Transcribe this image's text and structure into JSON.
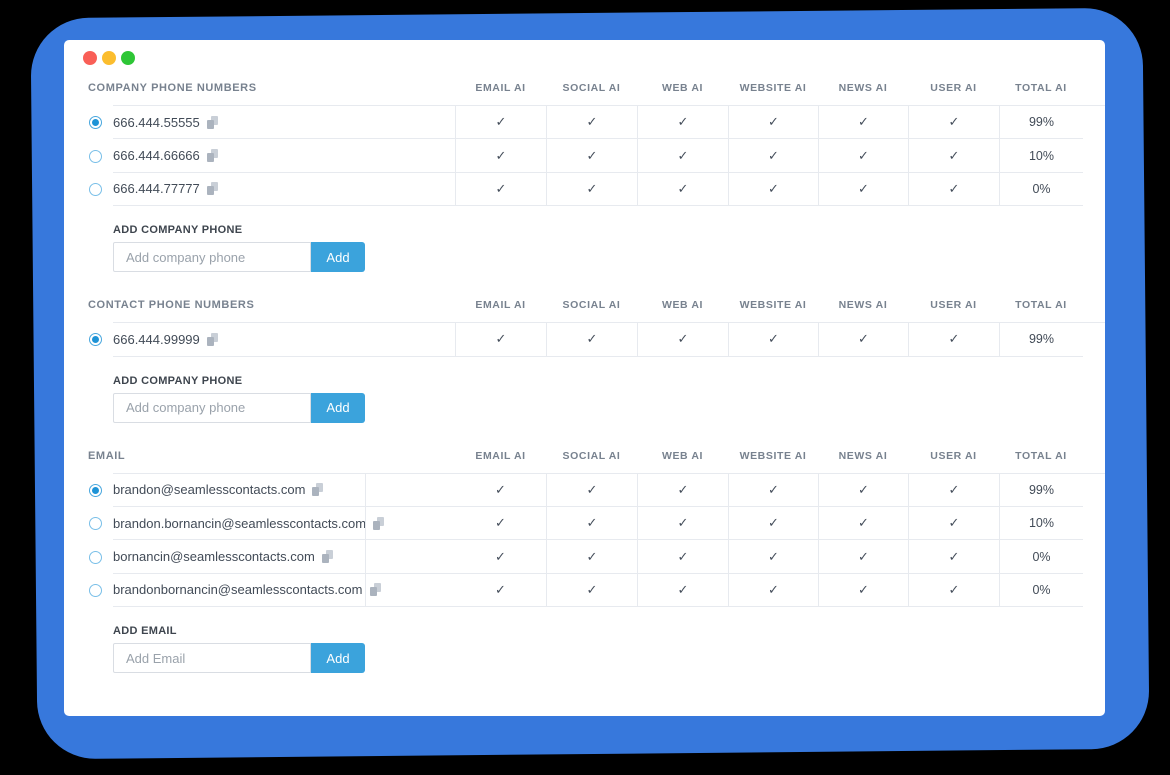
{
  "window": {
    "traffic_lights": [
      {
        "name": "close",
        "color": "#f95f57"
      },
      {
        "name": "minimize",
        "color": "#fbbd2e"
      },
      {
        "name": "zoom",
        "color": "#2ec636"
      }
    ]
  },
  "colors": {
    "background": "#3778dc",
    "card": "#ffffff",
    "button_blue": "#3ba3dc",
    "header_text": "#78828f",
    "row_text": "#424b57",
    "border": "#e7eaef",
    "radio_selected": "#1e93d6"
  },
  "columns": [
    "EMAIL AI",
    "SOCIAL AI",
    "WEB AI",
    "WEBSITE AI",
    "NEWS AI",
    "USER AI",
    "TOTAL AI"
  ],
  "check_glyph": "✓",
  "sections": [
    {
      "title": "COMPANY PHONE NUMBERS",
      "layout": "phone",
      "rows": [
        {
          "value": "666.444.55555",
          "selected": true,
          "checks": [
            "✓",
            "✓",
            "✓",
            "✓",
            "✓",
            "✓"
          ],
          "total": "99%"
        },
        {
          "value": "666.444.66666",
          "selected": false,
          "checks": [
            "✓",
            "✓",
            "✓",
            "✓",
            "✓",
            "✓"
          ],
          "total": "10%"
        },
        {
          "value": "666.444.77777",
          "selected": false,
          "checks": [
            "✓",
            "✓",
            "✓",
            "✓",
            "✓",
            "✓"
          ],
          "total": "0%"
        }
      ],
      "add": {
        "label": "ADD COMPANY PHONE",
        "placeholder": "Add company phone",
        "button": "Add"
      }
    },
    {
      "title": "CONTACT PHONE NUMBERS",
      "layout": "phone",
      "rows": [
        {
          "value": "666.444.99999",
          "selected": true,
          "checks": [
            "✓",
            "✓",
            "✓",
            "✓",
            "✓",
            "✓"
          ],
          "total": "99%"
        }
      ],
      "add": {
        "label": "ADD COMPANY PHONE",
        "placeholder": "Add company phone",
        "button": "Add"
      }
    },
    {
      "title": "EMAIL",
      "layout": "email",
      "rows": [
        {
          "value": "brandon@seamlesscontacts.com",
          "selected": true,
          "checks": [
            "✓",
            "✓",
            "✓",
            "✓",
            "✓",
            "✓"
          ],
          "total": "99%"
        },
        {
          "value": "brandon.bornancin@seamlesscontacts.com",
          "selected": false,
          "checks": [
            "✓",
            "✓",
            "✓",
            "✓",
            "✓",
            "✓"
          ],
          "total": "10%"
        },
        {
          "value": "bornancin@seamlesscontacts.com",
          "selected": false,
          "checks": [
            "✓",
            "✓",
            "✓",
            "✓",
            "✓",
            "✓"
          ],
          "total": "0%"
        },
        {
          "value": "brandonbornancin@seamlesscontacts.com",
          "selected": false,
          "checks": [
            "✓",
            "✓",
            "✓",
            "✓",
            "✓",
            "✓"
          ],
          "total": "0%"
        }
      ],
      "add": {
        "label": "ADD EMAIL",
        "placeholder": "Add Email",
        "button": "Add"
      }
    }
  ]
}
